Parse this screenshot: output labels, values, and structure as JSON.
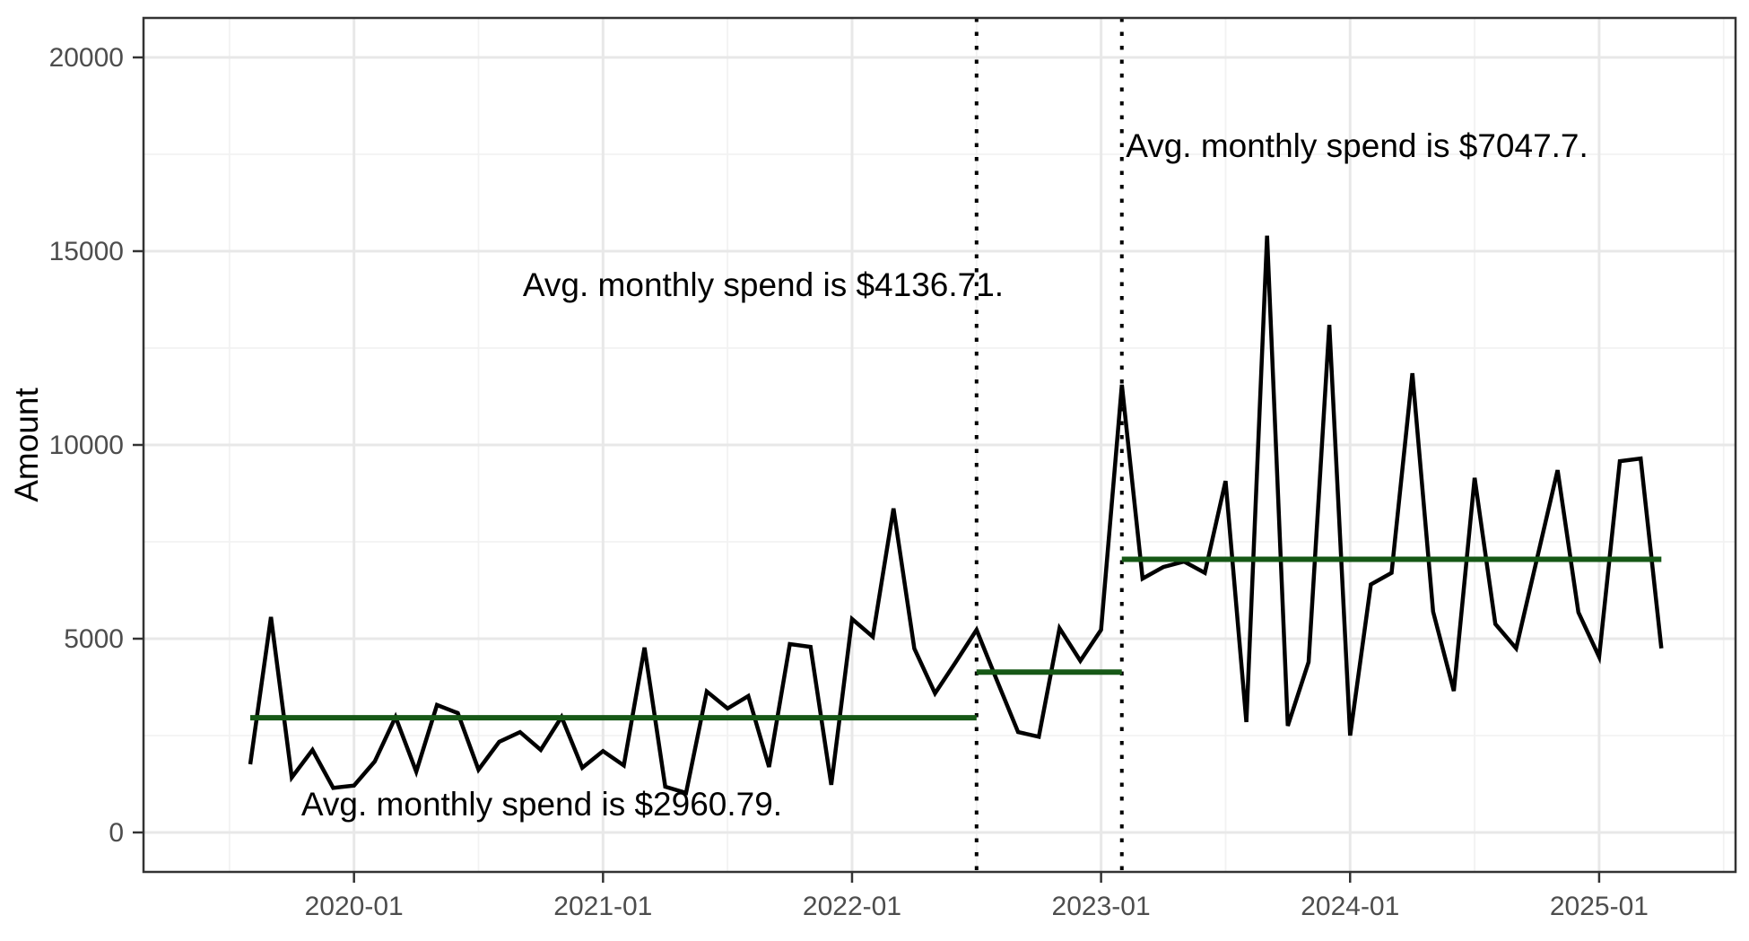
{
  "chart_data": {
    "type": "line",
    "title": "",
    "xlabel": "",
    "ylabel": "Amount",
    "grid": true,
    "legend": false,
    "x": [
      "2019-08",
      "2019-09",
      "2019-10",
      "2019-11",
      "2019-12",
      "2020-01",
      "2020-02",
      "2020-03",
      "2020-04",
      "2020-05",
      "2020-06",
      "2020-07",
      "2020-08",
      "2020-09",
      "2020-10",
      "2020-11",
      "2020-12",
      "2021-01",
      "2021-02",
      "2021-03",
      "2021-04",
      "2021-05",
      "2021-06",
      "2021-07",
      "2021-08",
      "2021-09",
      "2021-10",
      "2021-11",
      "2021-12",
      "2022-01",
      "2022-02",
      "2022-03",
      "2022-04",
      "2022-05",
      "2022-06",
      "2022-07",
      "2022-08",
      "2022-09",
      "2022-10",
      "2022-11",
      "2022-12",
      "2023-01",
      "2023-02",
      "2023-03",
      "2023-04",
      "2023-05",
      "2023-06",
      "2023-07",
      "2023-08",
      "2023-09",
      "2023-10",
      "2023-11",
      "2023-12",
      "2024-01",
      "2024-02",
      "2024-03",
      "2024-04",
      "2024-05",
      "2024-06",
      "2024-07",
      "2024-08",
      "2024-09",
      "2024-10",
      "2024-11",
      "2024-12",
      "2025-01",
      "2025-02",
      "2025-03",
      "2025-04"
    ],
    "values": [
      1760,
      5560,
      1420,
      2130,
      1150,
      1210,
      1830,
      2980,
      1570,
      3290,
      3080,
      1620,
      2340,
      2590,
      2130,
      2980,
      1670,
      2100,
      1730,
      4770,
      1180,
      1020,
      3640,
      3200,
      3520,
      1690,
      4860,
      4790,
      1230,
      5510,
      5050,
      8360,
      4745,
      3590,
      4400,
      5230,
      3900,
      2590,
      2470,
      5270,
      4430,
      5230,
      11550,
      6550,
      6850,
      6990,
      6700,
      9070,
      2850,
      15400,
      2750,
      4400,
      13100,
      2500,
      6400,
      6700,
      11850,
      5700,
      3650,
      9150,
      5380,
      4750,
      7050,
      9350,
      5680,
      4530,
      9580,
      9650,
      4750
    ],
    "x_tick_labels": [
      "2020-01",
      "2021-01",
      "2022-01",
      "2023-01",
      "2024-01",
      "2025-01"
    ],
    "x_minor_gridlines": [
      "2019-07",
      "2020-07",
      "2021-07",
      "2022-07",
      "2023-07",
      "2024-07",
      "2025-07"
    ],
    "y_ticks": [
      0,
      5000,
      10000,
      15000,
      20000
    ],
    "y_minor_gridlines": [
      2500,
      7500,
      12500,
      17500
    ],
    "ylim": [
      -1000,
      21000
    ],
    "vlines": [
      "2022-07",
      "2023-02"
    ],
    "periods": [
      {
        "label": "Avg. monthly spend is $2960.79.",
        "avg": 2960.79,
        "start": "2019-08",
        "end": "2022-07"
      },
      {
        "label": "Avg. monthly spend is $4136.71.",
        "avg": 4136.71,
        "start": "2022-07",
        "end": "2023-02"
      },
      {
        "label": "Avg. monthly spend is $7047.7.",
        "avg": 7047.7,
        "start": "2023-02",
        "end": "2025-04"
      }
    ],
    "colors": {
      "line": "#000000",
      "avg_line": "#165816",
      "vline": "#000000",
      "grid_major": "#e8e8e8",
      "grid_minor": "#f2f2f2",
      "axis_text": "#4d4d4d",
      "axis_title": "#000000",
      "annotation": "#000000",
      "panel_border": "#333333",
      "background": "#ffffff"
    }
  }
}
